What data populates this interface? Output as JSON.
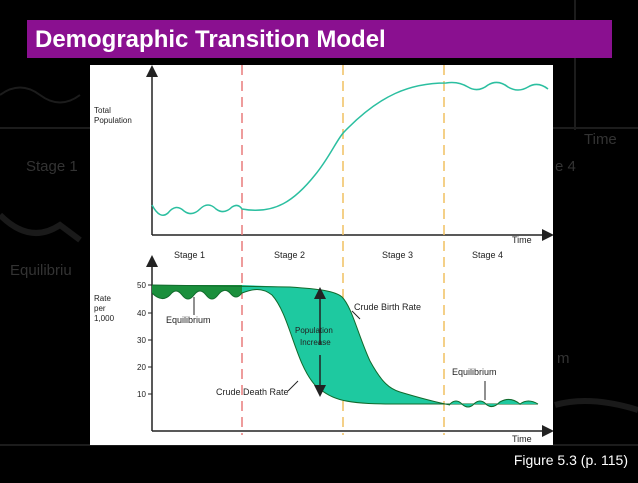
{
  "slide": {
    "title": "Demographic Transition Model",
    "caption": "Figure 5.3 (p. 115)"
  },
  "background": {
    "time_label": "Time",
    "stage1_label": "Stage 1",
    "stage4_fragment": "e 4",
    "equilibrium_fragment": "Equilibriu",
    "m_fragment": "m"
  },
  "figure": {
    "top_chart": {
      "ylabel_line1": "Total",
      "ylabel_line2": "Population",
      "xlabel": "Time"
    },
    "stages": [
      "Stage 1",
      "Stage 2",
      "Stage 3",
      "Stage 4"
    ],
    "bottom_chart": {
      "ylabel_line1": "Rate",
      "ylabel_line2": "per",
      "ylabel_line3": "1,000",
      "xlabel": "Time",
      "yticks": [
        "50",
        "40",
        "30",
        "20",
        "10"
      ],
      "annotations": {
        "equilibrium_left": "Equilibrium",
        "crude_birth_rate": "Crude Birth Rate",
        "population_line1": "Population",
        "population_line2": "Increase",
        "crude_death_rate": "Crude Death Rate",
        "equilibrium_right": "Equilibrium"
      }
    },
    "colors": {
      "fill_dark": "#1a8f3c",
      "fill_light": "#1ec9a0",
      "curve": "#2bbfa0",
      "stage_divider_1": "#e87b7b",
      "stage_divider_2": "#f0c060"
    }
  }
}
